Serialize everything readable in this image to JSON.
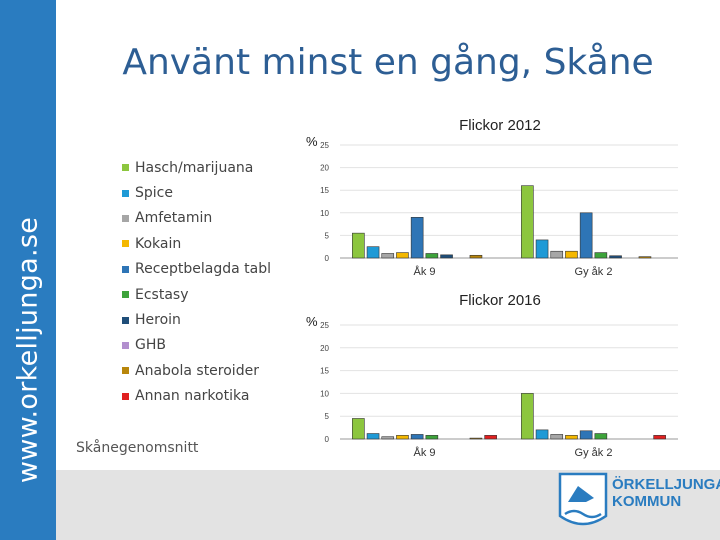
{
  "slide_title": "Använt minst en gång, Skåne",
  "sidebar_text": "www.orkelljunga.se",
  "footnote": "Skånegenomsnitt",
  "logo_lines": [
    "ÖRKELLJUNGA",
    "KOMMUN"
  ],
  "legend": [
    {
      "label": "Hasch/marijuana",
      "color": "#8cc63e"
    },
    {
      "label": "Spice",
      "color": "#1f9ad6"
    },
    {
      "label": "Amfetamin",
      "color": "#a6a6a6"
    },
    {
      "label": "Kokain",
      "color": "#f4b800"
    },
    {
      "label": "Receptbelagda tabl",
      "color": "#2e75b6"
    },
    {
      "label": "Ecstasy",
      "color": "#3da33a"
    },
    {
      "label": "Heroin",
      "color": "#1f4e79"
    },
    {
      "label": "GHB",
      "color": "#b28fce"
    },
    {
      "label": "Anabola steroider",
      "color": "#b8860b"
    },
    {
      "label": "Annan narkotika",
      "color": "#e02020"
    }
  ],
  "chart_data": [
    {
      "type": "bar",
      "title": "Flickor 2012",
      "ylabel": "%",
      "ylim": [
        0,
        25
      ],
      "yticks": [
        "0",
        "5",
        "10",
        "15",
        "20",
        "25"
      ],
      "categories": [
        "Åk 9",
        "Gy åk 2"
      ],
      "series": [
        {
          "name": "Hasch/marijuana",
          "values": [
            5.5,
            16
          ]
        },
        {
          "name": "Spice",
          "values": [
            2.5,
            4
          ]
        },
        {
          "name": "Amfetamin",
          "values": [
            1,
            1.5
          ]
        },
        {
          "name": "Kokain",
          "values": [
            1.2,
            1.5
          ]
        },
        {
          "name": "Receptbelagda tabl",
          "values": [
            9,
            10
          ]
        },
        {
          "name": "Ecstasy",
          "values": [
            1,
            1.2
          ]
        },
        {
          "name": "Heroin",
          "values": [
            0.7,
            0.5
          ]
        },
        {
          "name": "GHB",
          "values": [
            0,
            0
          ]
        },
        {
          "name": "Anabola steroider",
          "values": [
            0.6,
            0.3
          ]
        },
        {
          "name": "Annan narkotika",
          "values": [
            0,
            0
          ]
        }
      ]
    },
    {
      "type": "bar",
      "title": "Flickor 2016",
      "ylabel": "%",
      "ylim": [
        0,
        25
      ],
      "yticks": [
        "0",
        "5",
        "10",
        "15",
        "20",
        "25"
      ],
      "categories": [
        "Åk 9",
        "Gy åk 2"
      ],
      "series": [
        {
          "name": "Hasch/marijuana",
          "values": [
            4.5,
            10
          ]
        },
        {
          "name": "Spice",
          "values": [
            1.2,
            2
          ]
        },
        {
          "name": "Amfetamin",
          "values": [
            0.5,
            1
          ]
        },
        {
          "name": "Kokain",
          "values": [
            0.8,
            0.8
          ]
        },
        {
          "name": "Receptbelagda tabl",
          "values": [
            1,
            1.8
          ]
        },
        {
          "name": "Ecstasy",
          "values": [
            0.8,
            1.2
          ]
        },
        {
          "name": "Heroin",
          "values": [
            0,
            0
          ]
        },
        {
          "name": "GHB",
          "values": [
            0,
            0
          ]
        },
        {
          "name": "Anabola steroider",
          "values": [
            0.2,
            0
          ]
        },
        {
          "name": "Annan narkotika",
          "values": [
            0.8,
            0.8
          ]
        }
      ]
    }
  ]
}
